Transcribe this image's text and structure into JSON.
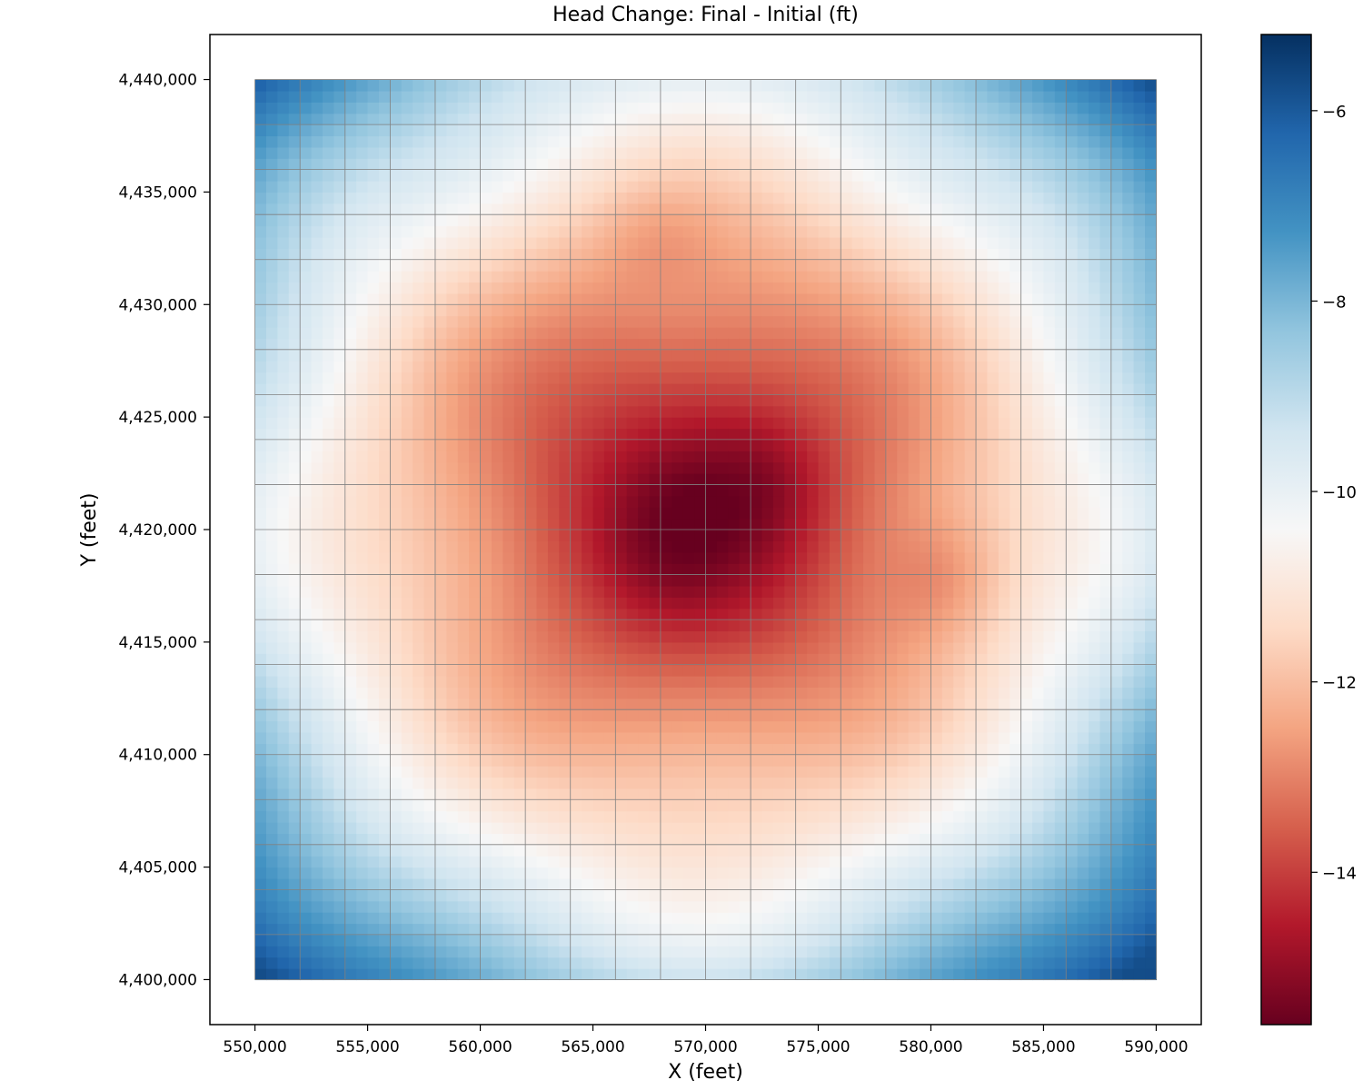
{
  "chart_data": {
    "type": "heatmap",
    "title": "Head Change: Final - Initial (ft)",
    "xlabel": "X (feet)",
    "ylabel": "Y (feet)",
    "xlim": [
      548000,
      592000
    ],
    "ylim": [
      4398000,
      4442000
    ],
    "data_extent": {
      "x": [
        550000,
        590000
      ],
      "y": [
        4400000,
        4440000
      ]
    },
    "grid": true,
    "grid_cell_size": 2000,
    "colormap": "RdBu",
    "colorbar": {
      "min": -15.6,
      "max": -5.2,
      "ticks": [
        -6,
        -8,
        -10,
        -12,
        -14
      ]
    },
    "xticks": [
      550000,
      555000,
      560000,
      565000,
      570000,
      575000,
      580000,
      585000,
      590000
    ],
    "xtick_labels": [
      "550,000",
      "555,000",
      "560,000",
      "565,000",
      "570,000",
      "575,000",
      "580,000",
      "585,000",
      "590,000"
    ],
    "yticks": [
      4440000,
      4435000,
      4430000,
      4425000,
      4420000,
      4415000,
      4410000,
      4405000,
      4400000
    ],
    "ytick_labels": [
      "4,440,000",
      "4,435,000",
      "4,430,000",
      "4,425,000",
      "4,420,000",
      "4,415,000",
      "4,410,000",
      "4,405,000",
      "4,400,000"
    ],
    "cbar_tick_labels": [
      "−6",
      "−8",
      "−10",
      "−12",
      "−14"
    ],
    "field": {
      "description": "approximate radial drawdown cone; values in ft",
      "center": [
        569500,
        4421000
      ],
      "min_value": -15.5,
      "edge_value": -9.5,
      "corner_value": -5.5,
      "hotspots": [
        {
          "x": 572000,
          "y": 4422000,
          "value": -15.6
        },
        {
          "x": 568500,
          "y": 4419500,
          "value": -15.4
        },
        {
          "x": 580000,
          "y": 4418000,
          "value": -13.8
        },
        {
          "x": 568000,
          "y": 4432000,
          "value": -13.0
        }
      ]
    },
    "colors": {
      "dark_red": "#67001f",
      "red": "#b2182b",
      "salmon": "#d6604d",
      "light_salmon": "#f4a582",
      "pale": "#fddbc7",
      "white": "#f7f7f7",
      "pale_blue": "#d1e5f0",
      "light_blue": "#92c5de",
      "blue": "#4393c3",
      "mid_blue": "#2166ac",
      "dark_blue": "#053061",
      "grid": "#808080"
    }
  }
}
